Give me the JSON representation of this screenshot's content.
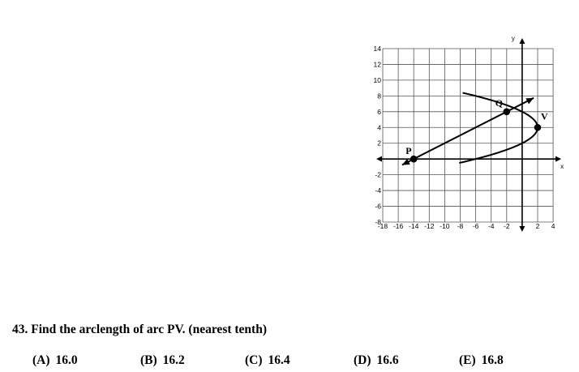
{
  "figure": {
    "y_axis_label": "y",
    "x_axis_label": "x",
    "y_ticks": [
      "14",
      "12",
      "10",
      "8",
      "6",
      "4",
      "2",
      "-2",
      "-4",
      "-6",
      "-8"
    ],
    "x_ticks": [
      "-18",
      "-16",
      "-14",
      "-12",
      "-10",
      "-8",
      "-6",
      "-4",
      "-2",
      "2",
      "4"
    ],
    "points": {
      "P": {
        "label": "P",
        "x": -14,
        "y": 0
      },
      "Q": {
        "label": "Q",
        "x": -2,
        "y": 6
      },
      "V": {
        "label": "V",
        "x": 2,
        "y": 4
      }
    },
    "line": {
      "from_x": -15.5,
      "from_y": -0.75,
      "to_x": 1.5,
      "to_y": 7.75
    },
    "parabola": {
      "vertex_x": 2,
      "vertex_y": 4,
      "y_from": -0.5,
      "y_to": 8.4
    }
  },
  "question": {
    "number": "43.",
    "text": "Find the arclength of arc PV.  (nearest tenth)"
  },
  "choices": [
    {
      "label": "(A)",
      "value": "16.0"
    },
    {
      "label": "(B)",
      "value": "16.2"
    },
    {
      "label": "(C)",
      "value": "16.4"
    },
    {
      "label": "(D)",
      "value": "16.6"
    },
    {
      "label": "(E)",
      "value": "16.8"
    }
  ]
}
